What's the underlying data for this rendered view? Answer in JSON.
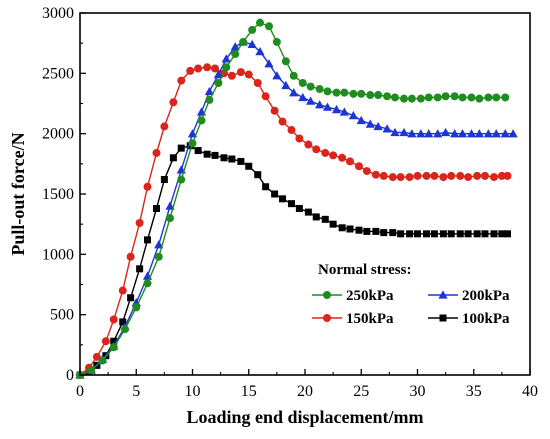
{
  "chart_data": {
    "type": "line",
    "xlabel": "Loading end displacement/mm",
    "ylabel": "Pull-out force/N",
    "xlim": [
      0,
      40
    ],
    "ylim": [
      0,
      3000
    ],
    "xticks": [
      0,
      5,
      10,
      15,
      20,
      25,
      30,
      35,
      40
    ],
    "yticks": [
      0,
      500,
      1000,
      1500,
      2000,
      2500,
      3000
    ],
    "grid": false,
    "legend": {
      "title": "Normal stress:",
      "position": "bottom-right"
    },
    "series": [
      {
        "name": "250kPa",
        "color": "#1f8c1f",
        "marker": "circle",
        "x": [
          0,
          1,
          2,
          3,
          4,
          5,
          6,
          7,
          8,
          9,
          10,
          10.8,
          11.5,
          12.3,
          13,
          13.8,
          14.5,
          15.3,
          16,
          16.8,
          17.5,
          18.3,
          19,
          19.8,
          20.5,
          21.3,
          22,
          22.8,
          23.5,
          24.3,
          25,
          25.8,
          26.5,
          27.3,
          28,
          28.8,
          29.5,
          30.3,
          31,
          31.8,
          32.5,
          33.3,
          34,
          34.8,
          35.5,
          36.3,
          37,
          37.8
        ],
        "y": [
          0,
          40,
          120,
          230,
          380,
          560,
          760,
          980,
          1300,
          1620,
          1920,
          2110,
          2280,
          2420,
          2550,
          2660,
          2760,
          2860,
          2920,
          2890,
          2760,
          2600,
          2480,
          2420,
          2390,
          2370,
          2350,
          2340,
          2340,
          2330,
          2330,
          2320,
          2320,
          2310,
          2300,
          2290,
          2290,
          2290,
          2300,
          2300,
          2310,
          2310,
          2300,
          2300,
          2290,
          2300,
          2300,
          2300
        ]
      },
      {
        "name": "200kPa",
        "color": "#1e35d6",
        "marker": "triangle",
        "x": [
          0,
          1,
          2,
          3,
          4,
          5,
          6,
          7,
          8,
          9,
          10,
          10.8,
          11.5,
          12.3,
          13,
          13.8,
          14.5,
          15.3,
          16,
          16.8,
          17.5,
          18.3,
          19,
          19.8,
          20.5,
          21.3,
          22,
          22.8,
          23.5,
          24.3,
          25,
          25.8,
          26.5,
          27.3,
          28,
          28.8,
          29.5,
          30.3,
          31,
          31.8,
          32.5,
          33.3,
          34,
          34.8,
          35.5,
          36.3,
          37,
          37.8,
          38.5
        ],
        "y": [
          0,
          40,
          130,
          240,
          400,
          600,
          820,
          1080,
          1400,
          1700,
          2000,
          2180,
          2350,
          2490,
          2620,
          2720,
          2760,
          2740,
          2680,
          2580,
          2480,
          2400,
          2340,
          2300,
          2270,
          2240,
          2220,
          2200,
          2180,
          2150,
          2110,
          2080,
          2060,
          2040,
          2010,
          2010,
          2000,
          2000,
          2000,
          2000,
          2010,
          2000,
          2000,
          2000,
          2000,
          2000,
          2000,
          2000,
          2000
        ]
      },
      {
        "name": "150kPa",
        "color": "#d9251c",
        "marker": "circle",
        "x": [
          0,
          0.8,
          1.5,
          2.3,
          3,
          3.8,
          4.5,
          5.3,
          6,
          6.8,
          7.5,
          8.3,
          9,
          9.8,
          10.5,
          11.3,
          12,
          12.8,
          13.5,
          14.3,
          15,
          15.8,
          16.5,
          17.3,
          18,
          18.8,
          19.5,
          20.3,
          21,
          21.8,
          22.5,
          23.3,
          24,
          24.8,
          25.5,
          26.3,
          27,
          27.8,
          28.5,
          29.3,
          30,
          30.8,
          31.5,
          32.3,
          33,
          33.8,
          34.5,
          35.3,
          36,
          36.8,
          37.5,
          38
        ],
        "y": [
          0,
          60,
          150,
          280,
          460,
          700,
          980,
          1260,
          1560,
          1840,
          2060,
          2260,
          2440,
          2520,
          2540,
          2550,
          2540,
          2500,
          2480,
          2510,
          2490,
          2420,
          2310,
          2190,
          2100,
          2030,
          1960,
          1910,
          1870,
          1840,
          1820,
          1800,
          1770,
          1730,
          1690,
          1660,
          1650,
          1640,
          1640,
          1640,
          1650,
          1650,
          1650,
          1640,
          1650,
          1650,
          1640,
          1650,
          1650,
          1640,
          1650,
          1650
        ]
      },
      {
        "name": "100kPa",
        "color": "#000000",
        "marker": "square",
        "x": [
          0,
          0.8,
          1.5,
          2.3,
          3,
          3.8,
          4.5,
          5.3,
          6,
          6.8,
          7.5,
          8.3,
          9,
          9.8,
          10.5,
          11.3,
          12,
          12.8,
          13.5,
          14.3,
          15,
          15.8,
          16.5,
          17.3,
          18,
          18.8,
          19.5,
          20.3,
          21,
          21.8,
          22.5,
          23.3,
          24,
          24.8,
          25.5,
          26.3,
          27,
          27.8,
          28.5,
          29.3,
          30,
          30.8,
          31.5,
          32.3,
          33,
          33.8,
          34.5,
          35.3,
          36,
          36.8,
          37.5,
          38
        ],
        "y": [
          0,
          30,
          80,
          160,
          280,
          440,
          640,
          880,
          1120,
          1380,
          1620,
          1800,
          1880,
          1900,
          1860,
          1830,
          1820,
          1800,
          1790,
          1770,
          1730,
          1660,
          1560,
          1500,
          1460,
          1420,
          1380,
          1350,
          1310,
          1290,
          1250,
          1220,
          1210,
          1200,
          1190,
          1190,
          1180,
          1180,
          1170,
          1170,
          1170,
          1170,
          1170,
          1170,
          1170,
          1170,
          1170,
          1170,
          1170,
          1170,
          1170,
          1170
        ]
      }
    ]
  }
}
